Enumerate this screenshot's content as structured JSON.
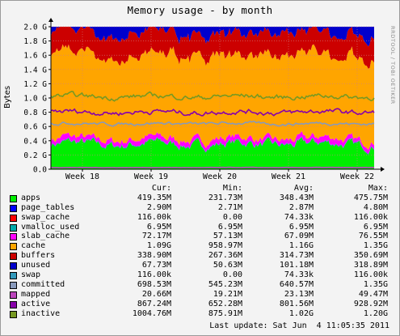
{
  "title": "Memory usage - by month",
  "ylabel": "Bytes",
  "watermark": "RRDTOOL / TOBI OETIKER",
  "legend_header": {
    "cur": "Cur:",
    "min": "Min:",
    "avg": "Avg:",
    "max": "Max:"
  },
  "legend": [
    {
      "name": "apps",
      "color": "#00ee00",
      "cur": "419.35M",
      "min": "231.73M",
      "avg": "348.43M",
      "max": "475.75M"
    },
    {
      "name": "page_tables",
      "color": "#0000ff",
      "cur": "2.90M",
      "min": "2.71M",
      "avg": "2.87M",
      "max": "4.80M"
    },
    {
      "name": "swap_cache",
      "color": "#ff0000",
      "cur": "116.00k",
      "min": "0.00",
      "avg": "74.33k",
      "max": "116.00k"
    },
    {
      "name": "vmalloc_used",
      "color": "#00aaaa",
      "cur": "6.95M",
      "min": "6.95M",
      "avg": "6.95M",
      "max": "6.95M"
    },
    {
      "name": "slab_cache",
      "color": "#ff00ff",
      "cur": "72.17M",
      "min": "57.13M",
      "avg": "67.09M",
      "max": "76.55M"
    },
    {
      "name": "cache",
      "color": "#ffa500",
      "cur": "1.09G",
      "min": "958.97M",
      "avg": "1.16G",
      "max": "1.35G"
    },
    {
      "name": "buffers",
      "color": "#cc0000",
      "cur": "338.90M",
      "min": "267.36M",
      "avg": "314.73M",
      "max": "350.69M"
    },
    {
      "name": "unused",
      "color": "#0000cc",
      "cur": "67.73M",
      "min": "50.63M",
      "avg": "101.18M",
      "max": "318.89M"
    },
    {
      "name": "swap",
      "color": "#3399bb",
      "cur": "116.00k",
      "min": "0.00",
      "avg": "74.33k",
      "max": "116.00k"
    },
    {
      "name": "committed",
      "color": "#8899bb",
      "cur": "698.53M",
      "min": "545.23M",
      "avg": "640.57M",
      "max": "1.35G"
    },
    {
      "name": "mapped",
      "color": "#bb44bb",
      "cur": "20.66M",
      "min": "19.21M",
      "avg": "23.13M",
      "max": "49.47M"
    },
    {
      "name": "active",
      "color": "#8800aa",
      "cur": "867.24M",
      "min": "652.28M",
      "avg": "801.56M",
      "max": "928.92M"
    },
    {
      "name": "inactive",
      "color": "#779922",
      "cur": "1004.76M",
      "min": "875.91M",
      "avg": "1.02G",
      "max": "1.20G"
    }
  ],
  "footer": {
    "label": "Last update:",
    "value": "Sat Jun  4 11:05:35 2011"
  },
  "chart_data": {
    "type": "area",
    "title": "Memory usage - by month",
    "ylabel": "Bytes",
    "x_ticks": [
      "Week 18",
      "Week 19",
      "Week 20",
      "Week 21",
      "Week 22"
    ],
    "y_ticks": [
      "0.0",
      "0.2 G",
      "0.4 G",
      "0.6 G",
      "0.8 G",
      "1.0 G",
      "1.2 G",
      "1.4 G",
      "1.6 G",
      "1.8 G",
      "2.0 G"
    ],
    "ylim_gb": [
      0,
      2.0
    ],
    "grid": true,
    "stack_order": [
      "apps",
      "page_tables",
      "swap_cache",
      "vmalloc_used",
      "slab_cache",
      "cache",
      "buffers",
      "unused",
      "swap"
    ],
    "line_order": [
      "committed",
      "mapped",
      "active",
      "inactive"
    ],
    "series_avg_gb": {
      "apps": 0.349,
      "page_tables": 0.003,
      "swap_cache": 0.0001,
      "vmalloc_used": 0.007,
      "slab_cache": 0.067,
      "cache": 1.16,
      "buffers": 0.315,
      "unused": 0.101,
      "swap": 0.0001,
      "committed": 0.641,
      "mapped": 0.023,
      "active": 0.802,
      "inactive": 1.02
    }
  }
}
